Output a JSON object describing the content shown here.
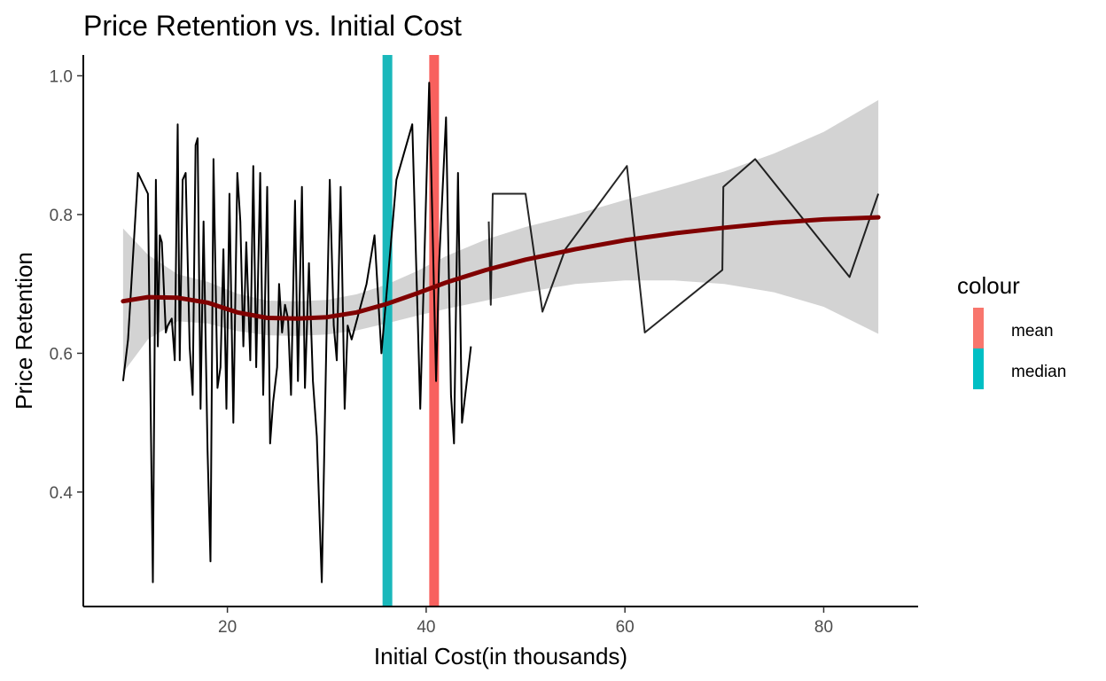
{
  "chart_data": {
    "type": "line",
    "title": "Price Retention vs. Initial Cost",
    "xlabel": "Initial Cost(in thousands)",
    "ylabel": "Price Retention",
    "xlim": [
      5.5,
      89.5
    ],
    "ylim": [
      0.235,
      1.03
    ],
    "x_ticks": [
      20,
      40,
      60,
      80
    ],
    "y_ticks": [
      0.4,
      0.6,
      0.8,
      1.0
    ],
    "x_tick_labels": [
      "20",
      "40",
      "60",
      "80"
    ],
    "y_tick_labels": [
      "0.4",
      "0.6",
      "0.8",
      "1.0"
    ],
    "grid": false,
    "legend": {
      "title": "colour",
      "position": "right",
      "entries": [
        {
          "label": "mean",
          "color": "#f8766d"
        },
        {
          "label": "median",
          "color": "#00bfc4"
        }
      ]
    },
    "vertical_lines": [
      {
        "name": "median",
        "x": 36.1,
        "color": "#1ab8bb"
      },
      {
        "name": "mean",
        "x": 40.8,
        "color": "#f8615e"
      }
    ],
    "series": [
      {
        "type": "line",
        "color": "#000000",
        "x": [
          9.5,
          10.0,
          11.0,
          12.0,
          12.5,
          12.8,
          13.0,
          13.2,
          13.4,
          13.8,
          14.0,
          14.4,
          14.7,
          15.0,
          15.2,
          15.5,
          15.8,
          16.2,
          16.5,
          16.8,
          17.0,
          17.3,
          17.6,
          18.0,
          18.3,
          18.6,
          19.0,
          19.3,
          19.6,
          19.9,
          20.2,
          20.6,
          21.0,
          21.3,
          21.6,
          21.9,
          22.3,
          22.6,
          22.9,
          23.3,
          23.6,
          24.0,
          24.3,
          24.6,
          25.0,
          25.2,
          25.5,
          25.8,
          26.1,
          26.4,
          26.8,
          27.1,
          27.5,
          27.8,
          28.2,
          28.6,
          29.0,
          29.5,
          30.0,
          30.3,
          30.7,
          31.0,
          31.4,
          31.8,
          32.1,
          32.5,
          34.0,
          34.8,
          35.5,
          37.0,
          38.6,
          39.4,
          40.3,
          41.0,
          41.3,
          42.0,
          42.5,
          42.8,
          43.2,
          43.6,
          44.5
        ],
        "y": [
          0.56,
          0.62,
          0.86,
          0.83,
          0.27,
          0.85,
          0.61,
          0.77,
          0.76,
          0.63,
          0.64,
          0.65,
          0.59,
          0.93,
          0.59,
          0.85,
          0.86,
          0.61,
          0.54,
          0.9,
          0.91,
          0.52,
          0.79,
          0.46,
          0.3,
          0.88,
          0.55,
          0.58,
          0.75,
          0.52,
          0.83,
          0.5,
          0.86,
          0.79,
          0.61,
          0.76,
          0.59,
          0.87,
          0.58,
          0.86,
          0.54,
          0.84,
          0.47,
          0.53,
          0.58,
          0.7,
          0.63,
          0.67,
          0.65,
          0.54,
          0.82,
          0.56,
          0.84,
          0.55,
          0.73,
          0.56,
          0.48,
          0.27,
          0.65,
          0.85,
          0.64,
          0.59,
          0.84,
          0.52,
          0.64,
          0.62,
          0.7,
          0.77,
          0.6,
          0.85,
          0.93,
          0.52,
          0.99,
          0.56,
          0.73,
          0.94,
          0.54,
          0.47,
          0.86,
          0.5,
          0.61
        ]
      },
      {
        "type": "line",
        "color": "#000000",
        "x": [
          46.3,
          46.5,
          46.7,
          50.0,
          51.7,
          54.0,
          60.2,
          62.0,
          69.8,
          69.9,
          73.1,
          82.6,
          85.5
        ],
        "y": [
          0.79,
          0.67,
          0.83,
          0.83,
          0.66,
          0.75,
          0.87,
          0.63,
          0.72,
          0.84,
          0.88,
          0.71,
          0.83
        ]
      },
      {
        "type": "smooth",
        "color": "#800000",
        "x": [
          9.5,
          12,
          15,
          18,
          21,
          24,
          27,
          30,
          33,
          36,
          39,
          42,
          46,
          50,
          55,
          60,
          65,
          70,
          75,
          80,
          85.5
        ],
        "y": [
          0.675,
          0.681,
          0.68,
          0.673,
          0.659,
          0.651,
          0.65,
          0.652,
          0.659,
          0.671,
          0.686,
          0.702,
          0.72,
          0.735,
          0.75,
          0.763,
          0.773,
          0.781,
          0.788,
          0.793,
          0.796
        ],
        "ci_low": [
          0.572,
          0.62,
          0.646,
          0.643,
          0.632,
          0.626,
          0.625,
          0.627,
          0.633,
          0.643,
          0.654,
          0.664,
          0.676,
          0.688,
          0.7,
          0.705,
          0.705,
          0.7,
          0.688,
          0.667,
          0.628
        ],
        "ci_high": [
          0.78,
          0.742,
          0.714,
          0.703,
          0.686,
          0.676,
          0.675,
          0.677,
          0.685,
          0.699,
          0.718,
          0.74,
          0.764,
          0.782,
          0.8,
          0.821,
          0.841,
          0.862,
          0.888,
          0.919,
          0.965
        ]
      }
    ]
  }
}
